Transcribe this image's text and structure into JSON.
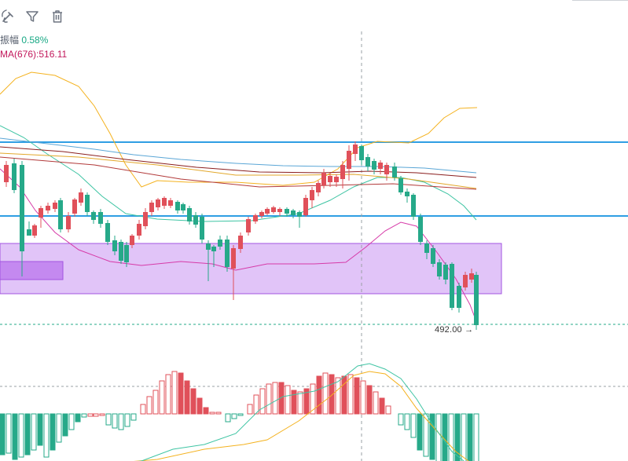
{
  "toolbar": {
    "icons": [
      "draw-icon",
      "filter-icon",
      "trash-icon"
    ]
  },
  "info": {
    "amplitude_label": "振幅",
    "amplitude_value": "0.58%",
    "ma_label": "MA(676):516.11"
  },
  "price_marker": {
    "value": "492.00",
    "arrow": "→"
  },
  "colors": {
    "up": "#e0505a",
    "down": "#26a989",
    "zone_fill": "#dcbaf7",
    "zone_border": "#a254e0",
    "support_line": "#2f9ee3",
    "ma_pink": "#d63aa8",
    "ma_teal": "#3ec4a3",
    "ma_orange": "#f4b21f",
    "ma_darkred": "#8a1e1e",
    "ma_blue": "#5aa6d6"
  }
}
